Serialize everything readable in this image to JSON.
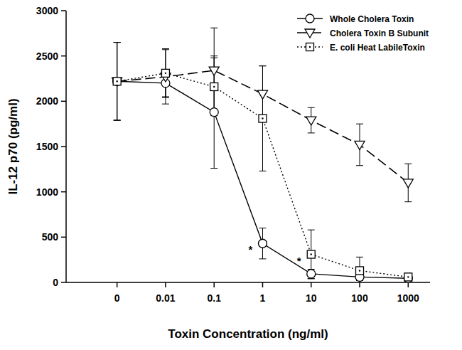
{
  "chart_data": {
    "type": "line",
    "x_label": "Toxin Concentration (ng/ml)",
    "y_label": "IL-12 p70  (pg/ml)",
    "categories": [
      "0",
      "0.01",
      "0.1",
      "1",
      "10",
      "100",
      "1000"
    ],
    "ylim": [
      0,
      3000
    ],
    "yticks": [
      0,
      500,
      1000,
      1500,
      2000,
      2500,
      3000
    ],
    "grid": false,
    "legend": "upper right",
    "series": [
      {
        "name": "Whole Cholera Toxin",
        "color": "#000000",
        "marker": "circle",
        "line_style": "solid",
        "values": [
          2220,
          2200,
          1880,
          430,
          95,
          60,
          45
        ],
        "errors": [
          430,
          150,
          620,
          170,
          50,
          40,
          30
        ]
      },
      {
        "name": "Cholera Toxin B Subunit",
        "color": "#000000",
        "marker": "triangle-down",
        "line_style": "dashed",
        "values": [
          2220,
          2270,
          2340,
          2080,
          1790,
          1520,
          1100
        ],
        "errors": [
          430,
          300,
          470,
          310,
          140,
          230,
          210
        ]
      },
      {
        "name": "E. coli Heat LabileToxin",
        "color": "#000000",
        "marker": "square",
        "line_style": "dotted",
        "values": [
          2220,
          2310,
          2160,
          1810,
          310,
          130,
          60
        ],
        "errors": [
          430,
          270,
          320,
          580,
          270,
          150,
          40
        ]
      }
    ],
    "annotations": [
      {
        "text": "*",
        "x": "1",
        "y": 430
      },
      {
        "text": "*",
        "x": "10",
        "y": 310
      }
    ]
  }
}
